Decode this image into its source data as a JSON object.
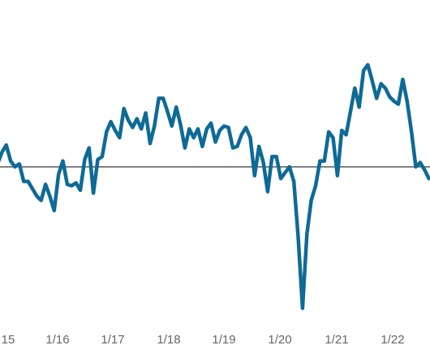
{
  "chart_data": {
    "type": "line",
    "xlabel": "",
    "ylabel": "",
    "x_ticks": [
      "15",
      "1/16",
      "1/17",
      "1/18",
      "1/19",
      "1/20",
      "1/21",
      "1/22"
    ],
    "reference_line": 0,
    "ylim": [
      -1.0,
      0.75
    ],
    "grid": false,
    "series": [
      {
        "color": "#0e6a96",
        "x": [
          0,
          1,
          2,
          3,
          4,
          5,
          6,
          7,
          8,
          9,
          10,
          11,
          12,
          13,
          14,
          15,
          16,
          17,
          18,
          19,
          20,
          21,
          22,
          23,
          24,
          25,
          26,
          27,
          28,
          29,
          30,
          31,
          32,
          33,
          34,
          35,
          36,
          37,
          38,
          39,
          40,
          41,
          42,
          43,
          44,
          45,
          46,
          47,
          48,
          49,
          50,
          51,
          52,
          53,
          54,
          55,
          56,
          57,
          58,
          59,
          60,
          61,
          62,
          63,
          64,
          65,
          66,
          67,
          68,
          69,
          70,
          71,
          72,
          73,
          74,
          75,
          76,
          77,
          78,
          79,
          80,
          81,
          82,
          83,
          84,
          85,
          86,
          87,
          88,
          89,
          90,
          91,
          92,
          93,
          94,
          95,
          96,
          97,
          98,
          99
        ],
        "y": [
          0.02,
          0.1,
          0.15,
          0.04,
          0,
          0.02,
          -0.1,
          -0.1,
          -0.15,
          -0.2,
          -0.23,
          -0.12,
          -0.2,
          -0.3,
          -0.05,
          0.04,
          -0.12,
          -0.13,
          -0.11,
          -0.16,
          0.05,
          0.13,
          -0.18,
          0.05,
          0.07,
          0.24,
          0.31,
          0.25,
          0.2,
          0.4,
          0.32,
          0.27,
          0.33,
          0.26,
          0.37,
          0.16,
          0.28,
          0.47,
          0.47,
          0.38,
          0.28,
          0.41,
          0.29,
          0.13,
          0.26,
          0.2,
          0.26,
          0.14,
          0.26,
          0.3,
          0.17,
          0.25,
          0.28,
          0.27,
          0.13,
          0.14,
          0.22,
          0.27,
          0.2,
          -0.06,
          0.14,
          0.03,
          -0.17,
          0.07,
          0.07,
          -0.08,
          -0.04,
          0,
          -0.1,
          -0.48,
          -0.97,
          -0.46,
          -0.23,
          -0.13,
          0.04,
          0.04,
          0.24,
          0.2,
          -0.06,
          0.25,
          0.22,
          0.38,
          0.54,
          0.41,
          0.66,
          0.7,
          0.59,
          0.47,
          0.57,
          0.54,
          0.48,
          0.45,
          0.43,
          0.6,
          0.45,
          0.24,
          0,
          0.03,
          -0.02,
          -0.08
        ]
      }
    ]
  }
}
